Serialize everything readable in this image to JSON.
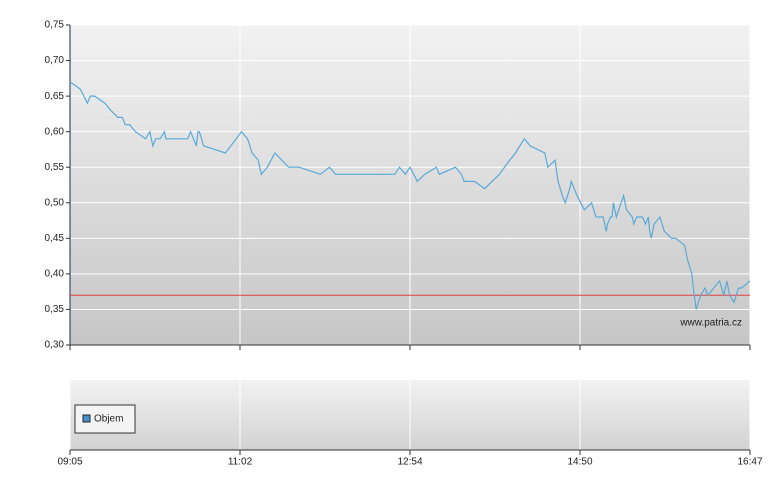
{
  "chart_data": [
    {
      "type": "line",
      "watermark": "www.patria.cz",
      "x": [
        "09:05",
        "09:12",
        "09:17",
        "09:19",
        "09:22",
        "09:29",
        "09:33",
        "09:38",
        "09:41",
        "09:43",
        "09:46",
        "09:50",
        "09:57",
        "10:00",
        "10:02",
        "10:04",
        "10:07",
        "10:10",
        "10:11",
        "10:26",
        "10:28",
        "10:30",
        "10:32",
        "10:33",
        "10:34",
        "10:37",
        "10:52",
        "11:03",
        "11:07",
        "11:10",
        "11:14",
        "11:16",
        "11:20",
        "11:25",
        "11:34",
        "11:41",
        "11:55",
        "12:01",
        "12:05",
        "12:44",
        "12:47",
        "12:51",
        "12:54",
        "12:59",
        "13:04",
        "13:12",
        "13:14",
        "13:25",
        "13:29",
        "13:31",
        "13:38",
        "13:45",
        "13:55",
        "14:02",
        "14:06",
        "14:12",
        "14:16",
        "14:26",
        "14:28",
        "14:33",
        "14:35",
        "14:38",
        "14:40",
        "14:43",
        "14:44",
        "14:48",
        "14:53",
        "14:58",
        "15:01",
        "15:06",
        "15:08",
        "15:09",
        "15:11",
        "15:12",
        "15:13",
        "15:15",
        "15:20",
        "15:22",
        "15:26",
        "15:27",
        "15:29",
        "15:33",
        "15:35",
        "15:37",
        "15:38",
        "15:39",
        "15:41",
        "15:45",
        "15:48",
        "15:53",
        "15:56",
        "16:02",
        "16:04",
        "16:07",
        "16:08",
        "16:10",
        "16:13",
        "16:16",
        "16:18",
        "16:26",
        "16:29",
        "16:31",
        "16:33",
        "16:36",
        "16:39",
        "16:41",
        "16:47"
      ],
      "series": [
        {
          "color": "#5aaad8",
          "values": [
            0.67,
            0.66,
            0.64,
            0.65,
            0.65,
            0.64,
            0.63,
            0.62,
            0.62,
            0.61,
            0.61,
            0.6,
            0.59,
            0.6,
            0.58,
            0.59,
            0.59,
            0.6,
            0.59,
            0.59,
            0.6,
            0.59,
            0.58,
            0.6,
            0.6,
            0.58,
            0.57,
            0.6,
            0.59,
            0.57,
            0.56,
            0.54,
            0.55,
            0.57,
            0.55,
            0.55,
            0.54,
            0.55,
            0.54,
            0.54,
            0.55,
            0.54,
            0.55,
            0.53,
            0.54,
            0.55,
            0.54,
            0.55,
            0.54,
            0.53,
            0.53,
            0.52,
            0.54,
            0.56,
            0.57,
            0.59,
            0.58,
            0.57,
            0.55,
            0.56,
            0.53,
            0.51,
            0.5,
            0.52,
            0.53,
            0.51,
            0.49,
            0.5,
            0.48,
            0.48,
            0.46,
            0.47,
            0.48,
            0.48,
            0.5,
            0.48,
            0.51,
            0.49,
            0.48,
            0.47,
            0.48,
            0.48,
            0.47,
            0.48,
            0.46,
            0.45,
            0.47,
            0.48,
            0.46,
            0.45,
            0.45,
            0.44,
            0.42,
            0.4,
            0.38,
            0.35,
            0.37,
            0.38,
            0.37,
            0.39,
            0.37,
            0.39,
            0.37,
            0.36,
            0.38,
            0.38,
            0.39
          ]
        }
      ],
      "reference_line": {
        "value": 0.37,
        "color": "#e04040"
      },
      "xticks": [
        "09:05",
        "11:02",
        "12:54",
        "14:50",
        "16:47"
      ],
      "ylim": [
        0.3,
        0.75
      ],
      "yticks": [
        {
          "value": 0.3,
          "label": "0,30"
        },
        {
          "value": 0.35,
          "label": "0,35"
        },
        {
          "value": 0.4,
          "label": "0,40"
        },
        {
          "value": 0.45,
          "label": "0,45"
        },
        {
          "value": 0.5,
          "label": "0,50"
        },
        {
          "value": 0.55,
          "label": "0,55"
        },
        {
          "value": 0.6,
          "label": "0,60"
        },
        {
          "value": 0.65,
          "label": "0,65"
        },
        {
          "value": 0.7,
          "label": "0,70"
        },
        {
          "value": 0.75,
          "label": "0,75"
        }
      ],
      "grid": true
    },
    {
      "type": "bar",
      "series": [
        {
          "name": "Objem",
          "color": "#4a90c8",
          "values": []
        }
      ],
      "legend": "upper left"
    }
  ]
}
